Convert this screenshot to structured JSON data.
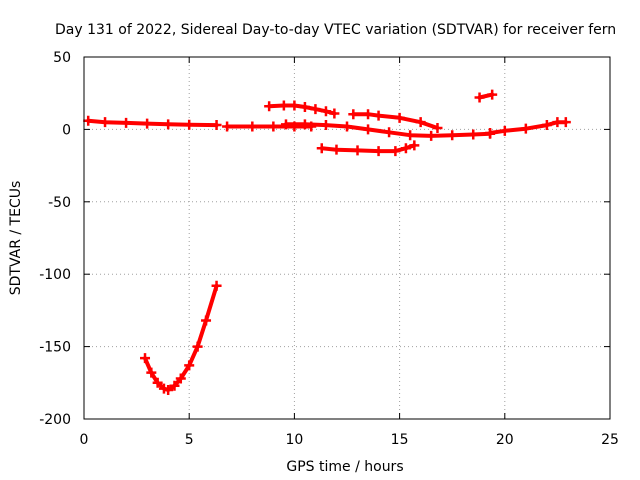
{
  "chart_data": {
    "type": "scatter",
    "title": "Day 131 of 2022, Sidereal Day-to-day VTEC variation (SDTVAR) for receiver fern",
    "xlabel": "GPS time / hours",
    "ylabel": "SDTVAR / TECUs",
    "xlim": [
      0,
      25
    ],
    "ylim": [
      -200,
      50
    ],
    "xticks": [
      "0",
      "5",
      "10",
      "15",
      "20",
      "25"
    ],
    "yticks": [
      "50",
      "0",
      "-50",
      "-100",
      "-150",
      "-200"
    ],
    "grid": true,
    "legend": "none",
    "color": "#ff0000",
    "series": [
      {
        "x": [
          0.2,
          1,
          2,
          3,
          4,
          5,
          6.3
        ],
        "y": [
          6,
          5,
          4.5,
          4,
          3.5,
          3.2,
          3
        ]
      },
      {
        "x": [
          6.8,
          8,
          9,
          10,
          10.8
        ],
        "y": [
          2,
          2,
          2,
          2,
          2
        ]
      },
      {
        "x": [
          8.8,
          9.5,
          10,
          10.5,
          11,
          11.5,
          11.9
        ],
        "y": [
          16,
          16.5,
          16.5,
          15.5,
          14,
          12.5,
          11
        ]
      },
      {
        "x": [
          9.6,
          10.5,
          11.5,
          12.5,
          13.5,
          14.5,
          15.5,
          16.5,
          17.5,
          18.5,
          19.3
        ],
        "y": [
          3.5,
          3.5,
          3,
          2,
          0,
          -2,
          -4,
          -4.5,
          -4,
          -3.5,
          -3
        ]
      },
      {
        "x": [
          11.3,
          12,
          13,
          14,
          14.8,
          15.3,
          15.7
        ],
        "y": [
          -13,
          -14,
          -14.5,
          -15,
          -15,
          -13,
          -11
        ]
      },
      {
        "x": [
          12.8,
          13.5,
          14,
          15,
          16,
          16.8
        ],
        "y": [
          10.5,
          10.5,
          9.5,
          8,
          5,
          1
        ]
      },
      {
        "x": [
          18.8,
          19.4
        ],
        "y": [
          22,
          24
        ]
      },
      {
        "x": [
          19.3,
          20,
          21,
          22,
          22.5,
          22.9
        ],
        "y": [
          -2.5,
          -1,
          0.5,
          3,
          5,
          5
        ]
      },
      {
        "x": [
          2.9,
          3.2,
          3.5,
          3.8,
          4.0,
          4.3,
          4.6,
          5.0,
          5.4,
          5.8,
          6.3
        ],
        "y": [
          -158,
          -168,
          -175,
          -179,
          -180,
          -177,
          -172,
          -163,
          -150,
          -132,
          -108
        ]
      }
    ]
  }
}
